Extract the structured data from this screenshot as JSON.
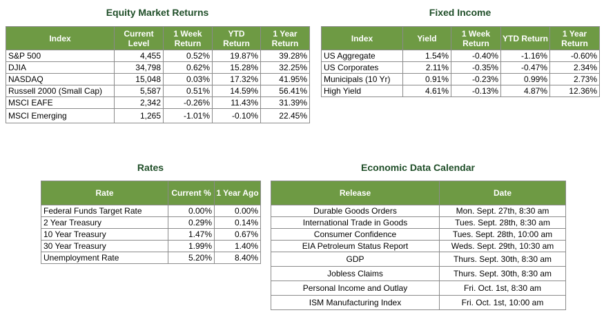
{
  "equity": {
    "title": "Equity Market Returns",
    "headers": [
      "Index",
      "Current Level",
      "1 Week Return",
      "YTD Return",
      "1 Year Return"
    ],
    "rows": [
      [
        "S&P 500",
        "4,455",
        "0.52%",
        "19.87%",
        "39.28%"
      ],
      [
        "DJIA",
        "34,798",
        "0.62%",
        "15.28%",
        "32.25%"
      ],
      [
        "NASDAQ",
        "15,048",
        "0.03%",
        "17.32%",
        "41.95%"
      ],
      [
        "Russell 2000 (Small Cap)",
        "5,587",
        "0.51%",
        "14.59%",
        "56.41%"
      ],
      [
        "MSCI EAFE",
        "2,342",
        "-0.26%",
        "11.43%",
        "31.39%"
      ],
      [
        "MSCI Emerging",
        "1,265",
        "-1.01%",
        "-0.10%",
        "22.45%"
      ]
    ]
  },
  "fixed_income": {
    "title": "Fixed Income",
    "headers": [
      "Index",
      "Yield",
      "1 Week Return",
      "YTD Return",
      "1 Year Return"
    ],
    "rows": [
      [
        "US Aggregate",
        "1.54%",
        "-0.40%",
        "-1.16%",
        "-0.60%"
      ],
      [
        "US Corporates",
        "2.11%",
        "-0.35%",
        "-0.47%",
        "2.34%"
      ],
      [
        "Municipals (10 Yr)",
        "0.91%",
        "-0.23%",
        "0.99%",
        "2.73%"
      ],
      [
        "High Yield",
        "4.61%",
        "-0.13%",
        "4.87%",
        "12.36%"
      ]
    ]
  },
  "rates": {
    "title": "Rates",
    "headers": [
      "Rate",
      "Current %",
      "1 Year Ago"
    ],
    "rows": [
      [
        "Federal Funds Target Rate",
        "0.00%",
        "0.00%"
      ],
      [
        "2 Year Treasury",
        "0.29%",
        "0.14%"
      ],
      [
        "10 Year Treasury",
        "1.47%",
        "0.67%"
      ],
      [
        "30 Year Treasury",
        "1.99%",
        "1.40%"
      ],
      [
        "Unemployment Rate",
        "5.20%",
        "8.40%"
      ]
    ]
  },
  "calendar": {
    "title": "Economic Data Calendar",
    "headers": [
      "Release",
      "Date"
    ],
    "rows": [
      [
        "Durable Goods Orders",
        "Mon. Sept. 27th, 8:30 am"
      ],
      [
        "International Trade in Goods",
        "Tues. Sept. 28th, 8:30 am"
      ],
      [
        "Consumer Confidence",
        "Tues. Sept. 28th, 10:00 am"
      ],
      [
        "EIA Petroleum Status Report",
        "Weds. Sept. 29th, 10:30 am"
      ],
      [
        "GDP",
        "Thurs. Sept. 30th, 8:30 am"
      ],
      [
        "Jobless Claims",
        "Thurs. Sept. 30th, 8:30 am"
      ],
      [
        "Personal Income and Outlay",
        "Fri. Oct. 1st, 8:30 am"
      ],
      [
        "ISM Manufacturing Index",
        "Fri. Oct. 1st, 10:00 am"
      ]
    ]
  }
}
